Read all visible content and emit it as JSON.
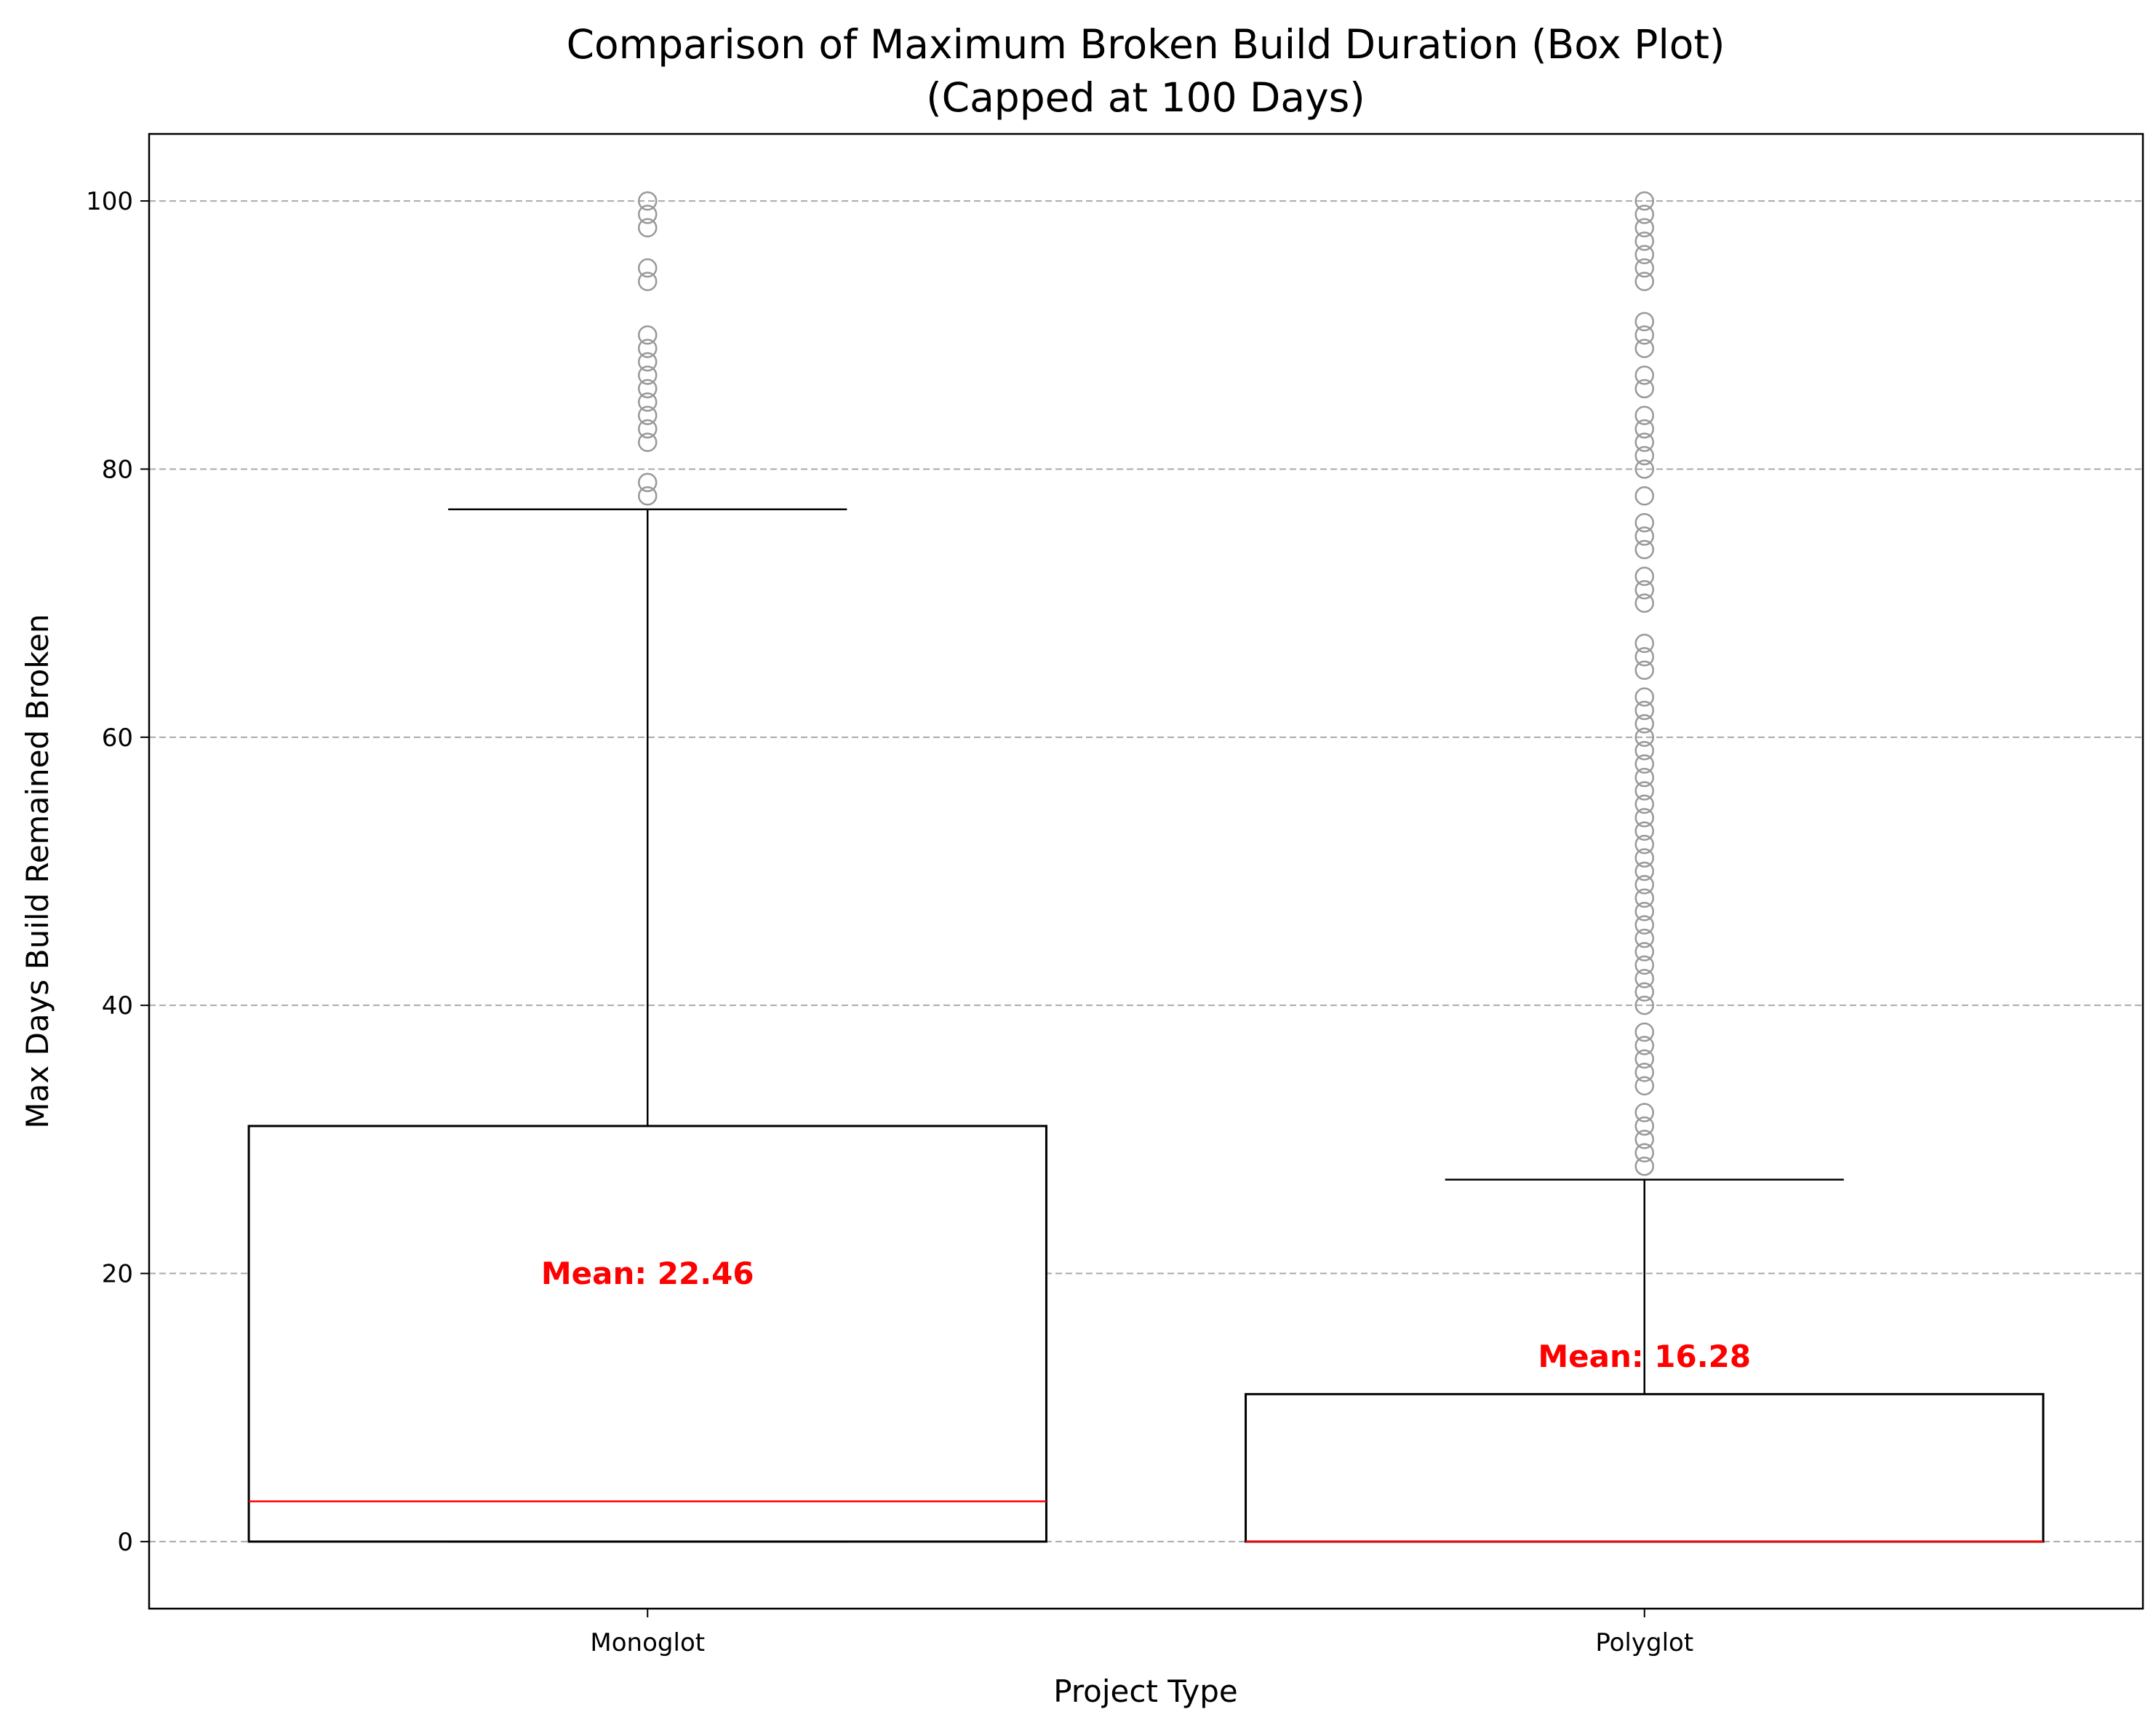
{
  "chart_data": {
    "type": "box",
    "title_lines": [
      "Comparison of Maximum Broken Build Duration (Box Plot)",
      "(Capped at 100 Days)"
    ],
    "xlabel": "Project Type",
    "ylabel": "Max Days Build Remained Broken",
    "categories": [
      "Monoglot",
      "Polyglot"
    ],
    "ylim": [
      -5,
      105
    ],
    "yticks": [
      0,
      20,
      40,
      60,
      80,
      100
    ],
    "grid": "horizontal dashed",
    "boxes": [
      {
        "category": "Monoglot",
        "q1": 0,
        "median": 3,
        "q3": 31,
        "whisker_low": 0,
        "whisker_high": 77,
        "outliers": [
          78,
          79,
          82,
          83,
          84,
          85,
          86,
          87,
          88,
          89,
          90,
          94,
          95,
          98,
          99,
          100
        ],
        "mean": 22.46,
        "mean_label": "Mean: 22.46"
      },
      {
        "category": "Polyglot",
        "q1": 0,
        "median": 0,
        "q3": 11,
        "whisker_low": 0,
        "whisker_high": 27,
        "outliers": [
          28,
          29,
          30,
          31,
          32,
          34,
          35,
          36,
          37,
          38,
          40,
          41,
          42,
          43,
          44,
          45,
          46,
          47,
          48,
          49,
          50,
          51,
          52,
          53,
          54,
          55,
          56,
          57,
          58,
          59,
          60,
          61,
          62,
          63,
          65,
          66,
          67,
          70,
          71,
          72,
          74,
          75,
          76,
          78,
          80,
          81,
          82,
          83,
          84,
          86,
          87,
          89,
          90,
          91,
          94,
          95,
          96,
          97,
          98,
          99,
          100
        ],
        "mean": 16.28,
        "mean_label": "Mean: 16.28"
      }
    ],
    "colors": {
      "box": "#000000",
      "median": "#ff0000",
      "mean_text": "#ff0000",
      "outlier": "#999999",
      "grid": "#aaaaaa"
    }
  }
}
